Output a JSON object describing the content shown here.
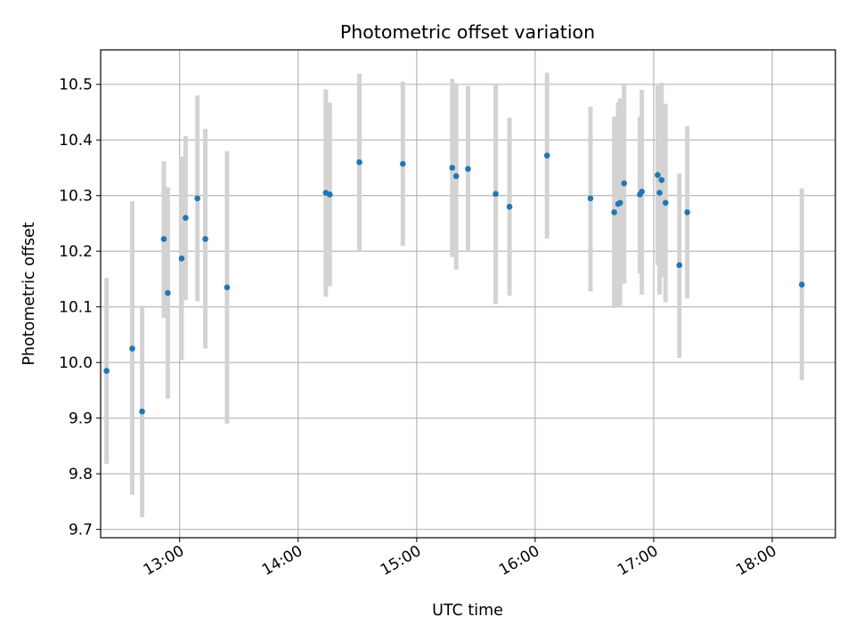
{
  "chart_data": {
    "type": "scatter",
    "title": "Photometric offset variation",
    "xlabel": "UTC time",
    "ylabel": "Photometric offset",
    "x_axis_kind": "time",
    "xlim": [
      "12:20",
      "18:32"
    ],
    "ylim": [
      9.685,
      10.562
    ],
    "grid": true,
    "legend": "none",
    "x_ticks": [
      "13:00",
      "14:00",
      "15:00",
      "16:00",
      "17:00",
      "18:00"
    ],
    "y_ticks": [
      "9.7",
      "9.8",
      "9.9",
      "10.0",
      "10.1",
      "10.2",
      "10.3",
      "10.4",
      "10.5"
    ],
    "colors": {
      "marker": "#1f77b4",
      "errorbar": "#d3d3d3",
      "grid": "#b0b0b0"
    },
    "series": [
      {
        "points": [
          {
            "x": "12:23",
            "y": 9.985,
            "lo": 9.818,
            "hi": 10.152
          },
          {
            "x": "12:36",
            "y": 10.025,
            "lo": 9.762,
            "hi": 10.29
          },
          {
            "x": "12:41",
            "y": 9.912,
            "lo": 9.722,
            "hi": 10.102
          },
          {
            "x": "12:52",
            "y": 10.222,
            "lo": 10.08,
            "hi": 10.362
          },
          {
            "x": "12:54",
            "y": 10.125,
            "lo": 9.935,
            "hi": 10.315
          },
          {
            "x": "13:01",
            "y": 10.187,
            "lo": 10.005,
            "hi": 10.37
          },
          {
            "x": "13:03",
            "y": 10.26,
            "lo": 10.112,
            "hi": 10.407
          },
          {
            "x": "13:09",
            "y": 10.295,
            "lo": 10.11,
            "hi": 10.48
          },
          {
            "x": "13:13",
            "y": 10.222,
            "lo": 10.025,
            "hi": 10.42
          },
          {
            "x": "13:24",
            "y": 10.135,
            "lo": 9.89,
            "hi": 10.38
          },
          {
            "x": "14:14",
            "y": 10.305,
            "lo": 10.118,
            "hi": 10.491
          },
          {
            "x": "14:16",
            "y": 10.302,
            "lo": 10.137,
            "hi": 10.467
          },
          {
            "x": "14:31",
            "y": 10.36,
            "lo": 10.2,
            "hi": 10.519
          },
          {
            "x": "14:53",
            "y": 10.357,
            "lo": 10.21,
            "hi": 10.505
          },
          {
            "x": "15:18",
            "y": 10.35,
            "lo": 10.19,
            "hi": 10.51
          },
          {
            "x": "15:20",
            "y": 10.335,
            "lo": 10.167,
            "hi": 10.502
          },
          {
            "x": "15:26",
            "y": 10.348,
            "lo": 10.2,
            "hi": 10.497
          },
          {
            "x": "15:40",
            "y": 10.303,
            "lo": 10.105,
            "hi": 10.5
          },
          {
            "x": "15:47",
            "y": 10.28,
            "lo": 10.12,
            "hi": 10.44
          },
          {
            "x": "16:06",
            "y": 10.372,
            "lo": 10.223,
            "hi": 10.521
          },
          {
            "x": "16:28",
            "y": 10.295,
            "lo": 10.128,
            "hi": 10.46
          },
          {
            "x": "16:40",
            "y": 10.27,
            "lo": 10.098,
            "hi": 10.442
          },
          {
            "x": "16:42",
            "y": 10.285,
            "lo": 10.1,
            "hi": 10.468
          },
          {
            "x": "16:43",
            "y": 10.287,
            "lo": 10.102,
            "hi": 10.475
          },
          {
            "x": "16:45",
            "y": 10.322,
            "lo": 10.142,
            "hi": 10.502
          },
          {
            "x": "16:53",
            "y": 10.302,
            "lo": 10.16,
            "hi": 10.442
          },
          {
            "x": "16:54",
            "y": 10.307,
            "lo": 10.122,
            "hi": 10.49
          },
          {
            "x": "17:02",
            "y": 10.337,
            "lo": 10.175,
            "hi": 10.498
          },
          {
            "x": "17:03",
            "y": 10.305,
            "lo": 10.122,
            "hi": 10.487
          },
          {
            "x": "17:04",
            "y": 10.328,
            "lo": 10.153,
            "hi": 10.503
          },
          {
            "x": "17:06",
            "y": 10.287,
            "lo": 10.108,
            "hi": 10.465
          },
          {
            "x": "17:13",
            "y": 10.175,
            "lo": 10.008,
            "hi": 10.34
          },
          {
            "x": "17:17",
            "y": 10.27,
            "lo": 10.115,
            "hi": 10.425
          },
          {
            "x": "18:15",
            "y": 10.14,
            "lo": 9.968,
            "hi": 10.313
          }
        ]
      }
    ]
  }
}
